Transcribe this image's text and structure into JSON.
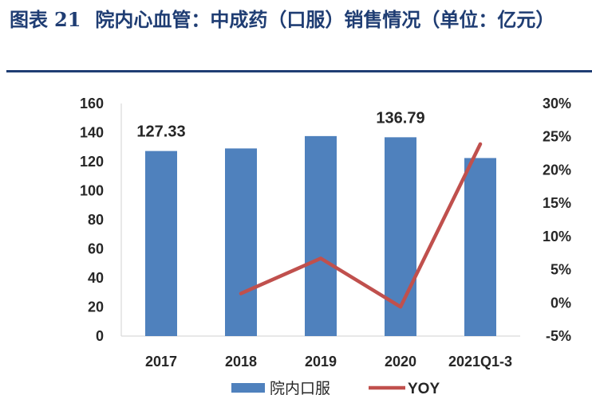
{
  "figure": {
    "label": "图表",
    "number": "21",
    "title": "院内心血管：中成药（口服）销售情况（单位：亿元）"
  },
  "colors": {
    "bar": "#4f81bd",
    "line": "#c0504d",
    "title": "#1f3d73",
    "axis": "#d9d9d9"
  },
  "chart_data": {
    "type": "bar",
    "categories": [
      "2017",
      "2018",
      "2019",
      "2020",
      "2021Q1-3"
    ],
    "series": [
      {
        "name": "院内口服",
        "type": "bar",
        "axis": "left",
        "values": [
          127.33,
          129.1,
          137.6,
          136.79,
          122.5
        ]
      },
      {
        "name": "YOY",
        "type": "line",
        "axis": "right",
        "values": [
          null,
          1.4,
          6.7,
          -0.6,
          23.9
        ]
      }
    ],
    "data_labels": [
      {
        "category": "2017",
        "text": "127.33"
      },
      {
        "category": "2020",
        "text": "136.79"
      }
    ],
    "y_left": {
      "ylim": [
        0,
        160
      ],
      "ticks": [
        "0",
        "20",
        "40",
        "60",
        "80",
        "100",
        "120",
        "140",
        "160"
      ]
    },
    "y_right": {
      "ylim": [
        -5,
        30
      ],
      "ticks": [
        "-5%",
        "0%",
        "5%",
        "10%",
        "15%",
        "20%",
        "25%",
        "30%"
      ]
    },
    "legend": {
      "placement": "bottom",
      "entries": [
        "院内口服",
        "YOY"
      ]
    },
    "grid": false
  }
}
